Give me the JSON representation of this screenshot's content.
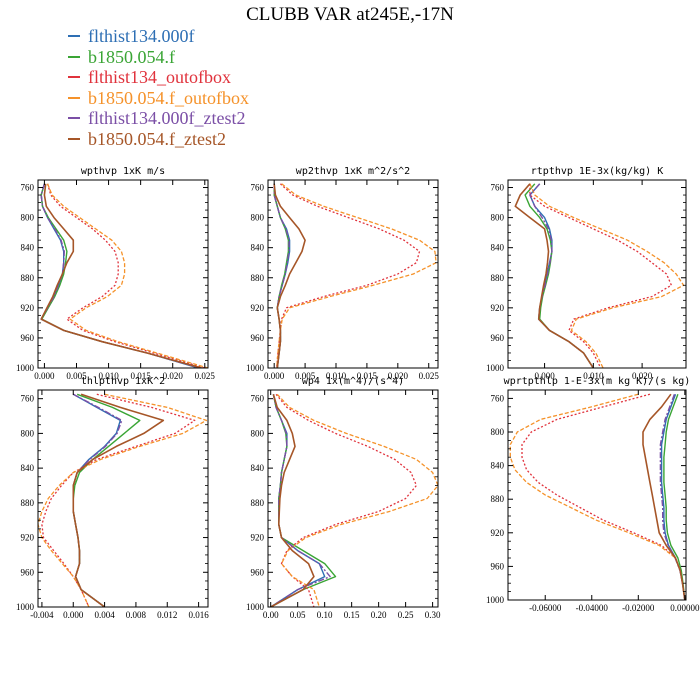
{
  "figure_title": "CLUBB VAR at245E,-17N",
  "legend": [
    {
      "label": "flthist134.000f",
      "color": "#2e6fb4"
    },
    {
      "label": "b1850.054.f",
      "color": "#3aa535"
    },
    {
      "label": "flthist134_outofbox",
      "color": "#e0323c"
    },
    {
      "label": "b1850.054.f_outofbox",
      "color": "#f5922a"
    },
    {
      "label": "flthist134.000f_ztest2",
      "color": "#7b4fa6"
    },
    {
      "label": "b1850.054.f_ztest2",
      "color": "#a65628"
    }
  ],
  "chart_data": [
    {
      "type": "line",
      "title": "wpthvp  1xK m/s",
      "ylim": [
        1000,
        750
      ],
      "yticks": [
        760,
        800,
        840,
        880,
        920,
        960,
        1000
      ],
      "xlim": [
        -0.001,
        0.0255
      ],
      "xticks": [
        0.0,
        0.005,
        0.01,
        0.015,
        0.02,
        0.025
      ],
      "xtick_labels": [
        "0.000",
        "0.005",
        "0.010",
        "0.015",
        "0.020",
        "0.025"
      ],
      "y": [
        755,
        770,
        785,
        800,
        815,
        830,
        845,
        860,
        875,
        890,
        905,
        920,
        935,
        950,
        965,
        980,
        1000
      ],
      "series": [
        {
          "values": [
            0.0,
            -0.0005,
            -0.0003,
            0.0005,
            0.0015,
            0.0025,
            0.003,
            0.003,
            0.0028,
            0.0022,
            0.0015,
            0.0005,
            -0.0005,
            0.003,
            0.009,
            0.016,
            0.024
          ]
        },
        {
          "values": [
            0.0,
            -0.0005,
            -0.0003,
            0.0006,
            0.0018,
            0.003,
            0.0035,
            0.0033,
            0.003,
            0.0024,
            0.0016,
            0.0006,
            -0.0004,
            0.003,
            0.009,
            0.016,
            0.0245
          ]
        },
        {
          "values": [
            0.0005,
            0.001,
            0.0025,
            0.005,
            0.0075,
            0.0095,
            0.011,
            0.0115,
            0.0115,
            0.011,
            0.009,
            0.006,
            0.0035,
            0.006,
            0.011,
            0.017,
            0.025
          ]
        },
        {
          "values": [
            0.0005,
            0.0012,
            0.003,
            0.0055,
            0.008,
            0.0105,
            0.012,
            0.0125,
            0.0125,
            0.012,
            0.0098,
            0.0065,
            0.004,
            0.0065,
            0.0115,
            0.0175,
            0.0255
          ]
        },
        {
          "values": [
            0.0,
            -0.0005,
            -0.0003,
            0.0005,
            0.0016,
            0.0026,
            0.0031,
            0.003,
            0.0028,
            0.0022,
            0.0015,
            0.0005,
            -0.0005,
            0.003,
            0.009,
            0.016,
            0.0242
          ]
        },
        {
          "values": [
            0.0002,
            0.0,
            0.0003,
            0.0015,
            0.003,
            0.0045,
            0.0045,
            0.0035,
            0.0028,
            0.002,
            0.0013,
            0.0004,
            -0.0005,
            0.003,
            0.009,
            0.016,
            0.0245
          ]
        }
      ]
    },
    {
      "type": "line",
      "title": "wp2thvp  1xK m^2/s^2",
      "ylim": [
        1000,
        750
      ],
      "yticks": [
        760,
        800,
        840,
        880,
        920,
        960,
        1000
      ],
      "xlim": [
        -0.001,
        0.0265
      ],
      "xticks": [
        0.0,
        0.005,
        0.01,
        0.015,
        0.02,
        0.025
      ],
      "xtick_labels": [
        "0.000",
        "0.005",
        "0.010",
        "0.015",
        "0.020",
        "0.025"
      ],
      "y": [
        755,
        770,
        785,
        800,
        815,
        830,
        845,
        860,
        875,
        890,
        905,
        920,
        935,
        950,
        965,
        980,
        1000
      ],
      "series": [
        {
          "values": [
            0.0,
            0.0,
            0.0005,
            0.001,
            0.002,
            0.0025,
            0.0025,
            0.0022,
            0.0018,
            0.0013,
            0.0008,
            0.0005,
            0.0008,
            0.001,
            0.001,
            0.0008,
            0.0005
          ]
        },
        {
          "values": [
            0.0,
            0.0,
            0.0005,
            0.001,
            0.0018,
            0.0023,
            0.0023,
            0.002,
            0.0017,
            0.0012,
            0.0008,
            0.0005,
            0.0008,
            0.001,
            0.001,
            0.0008,
            0.0005
          ]
        },
        {
          "values": [
            0.001,
            0.003,
            0.007,
            0.012,
            0.017,
            0.021,
            0.0235,
            0.023,
            0.02,
            0.015,
            0.008,
            0.002,
            0.0012,
            0.001,
            0.0008,
            0.0006,
            0.0004
          ]
        },
        {
          "values": [
            0.0012,
            0.0035,
            0.008,
            0.0135,
            0.019,
            0.0235,
            0.026,
            0.0262,
            0.0225,
            0.016,
            0.009,
            0.0025,
            0.0013,
            0.001,
            0.0008,
            0.0006,
            0.0004
          ]
        },
        {
          "values": [
            0.0,
            0.0,
            0.0005,
            0.001,
            0.0019,
            0.0024,
            0.0024,
            0.0021,
            0.0018,
            0.0013,
            0.0008,
            0.0005,
            0.0008,
            0.001,
            0.001,
            0.0008,
            0.0005
          ]
        },
        {
          "values": [
            0.0,
            0.0002,
            0.001,
            0.0025,
            0.004,
            0.005,
            0.0045,
            0.0035,
            0.0025,
            0.0018,
            0.001,
            0.0005,
            0.0008,
            0.001,
            0.001,
            0.0008,
            0.0005
          ]
        }
      ]
    },
    {
      "type": "line",
      "title": "rtpthvp  1E-3x(kg/kg) K",
      "ylim": [
        1000,
        750
      ],
      "yticks": [
        760,
        800,
        840,
        880,
        920,
        960,
        1000
      ],
      "xlim": [
        -0.0075,
        0.029
      ],
      "xticks": [
        0.0,
        0.01,
        0.02
      ],
      "xtick_labels": [
        "0.000",
        "0.010",
        "0.020"
      ],
      "y": [
        755,
        770,
        785,
        800,
        815,
        830,
        845,
        860,
        875,
        890,
        905,
        920,
        935,
        950,
        965,
        980,
        1000
      ],
      "series": [
        {
          "values": [
            -0.001,
            -0.003,
            -0.002,
            0.0,
            0.001,
            0.0015,
            0.0015,
            0.001,
            0.0005,
            0.0,
            -0.0005,
            -0.001,
            -0.0012,
            0.001,
            0.005,
            0.008,
            0.01
          ]
        },
        {
          "values": [
            -0.002,
            -0.004,
            -0.003,
            -0.001,
            0.0005,
            0.0012,
            0.0015,
            0.0012,
            0.0008,
            0.0002,
            -0.0004,
            -0.0008,
            -0.001,
            0.001,
            0.005,
            0.008,
            0.01
          ]
        },
        {
          "values": [
            -0.003,
            -0.003,
            0.0,
            0.005,
            0.01,
            0.015,
            0.019,
            0.022,
            0.025,
            0.026,
            0.022,
            0.013,
            0.006,
            0.005,
            0.008,
            0.01,
            0.0115
          ]
        },
        {
          "values": [
            -0.003,
            -0.002,
            0.001,
            0.006,
            0.0115,
            0.017,
            0.021,
            0.0245,
            0.027,
            0.0285,
            0.024,
            0.014,
            0.0065,
            0.0055,
            0.0085,
            0.0105,
            0.012
          ]
        },
        {
          "values": [
            -0.001,
            -0.003,
            -0.002,
            -0.0005,
            0.0008,
            0.0014,
            0.0015,
            0.0011,
            0.0006,
            0.0001,
            -0.0005,
            -0.001,
            -0.0012,
            0.001,
            0.005,
            0.008,
            0.01
          ]
        },
        {
          "values": [
            -0.003,
            -0.005,
            -0.006,
            -0.003,
            0.0,
            0.0005,
            0.0008,
            0.0006,
            0.0003,
            -0.0002,
            -0.0006,
            -0.001,
            -0.0012,
            0.001,
            0.005,
            0.008,
            0.01
          ]
        }
      ]
    },
    {
      "type": "line",
      "title": "thlpthvp  1xK^2",
      "ylim": [
        1000,
        750
      ],
      "yticks": [
        760,
        800,
        840,
        880,
        920,
        960,
        1000
      ],
      "xlim": [
        -0.0045,
        0.0172
      ],
      "xticks": [
        -0.004,
        0.0,
        0.004,
        0.008,
        0.012,
        0.016
      ],
      "xtick_labels": [
        "-0.004",
        "0.000",
        "0.004",
        "0.008",
        "0.012",
        "0.016"
      ],
      "y": [
        755,
        770,
        785,
        800,
        815,
        830,
        845,
        860,
        875,
        890,
        905,
        920,
        935,
        950,
        965,
        980,
        1000
      ],
      "series": [
        {
          "values": [
            0.0,
            0.003,
            0.006,
            0.0055,
            0.004,
            0.002,
            0.0005,
            0.0,
            0.0,
            0.0,
            0.0003,
            0.0006,
            0.0008,
            0.0008,
            0.0003,
            0.001,
            0.004
          ]
        },
        {
          "values": [
            0.0005,
            0.005,
            0.0085,
            0.0065,
            0.0045,
            0.0025,
            0.0008,
            0.0002,
            0.0,
            0.0,
            0.0003,
            0.0006,
            0.0008,
            0.0008,
            0.0003,
            0.001,
            0.004
          ]
        },
        {
          "values": [
            0.003,
            0.01,
            0.0155,
            0.013,
            0.008,
            0.003,
            0.0,
            -0.0015,
            -0.0028,
            -0.0035,
            -0.004,
            -0.0038,
            -0.0025,
            -0.0012,
            0.0,
            0.001,
            0.002
          ]
        },
        {
          "values": [
            0.004,
            0.012,
            0.017,
            0.014,
            0.0085,
            0.0035,
            0.0,
            -0.0018,
            -0.0032,
            -0.004,
            -0.0045,
            -0.004,
            -0.0028,
            -0.0014,
            0.0,
            0.001,
            0.002
          ]
        },
        {
          "values": [
            0.0,
            0.0032,
            0.0062,
            0.0056,
            0.0041,
            0.0021,
            0.0005,
            0.0,
            0.0,
            0.0,
            0.0003,
            0.0006,
            0.0008,
            0.0008,
            0.0003,
            0.001,
            0.004
          ]
        },
        {
          "values": [
            0.001,
            0.006,
            0.0115,
            0.009,
            0.0055,
            0.0025,
            0.0005,
            0.0,
            0.0,
            0.0,
            0.0003,
            0.0006,
            0.0008,
            0.0008,
            0.0003,
            0.001,
            0.004
          ]
        }
      ]
    },
    {
      "type": "line",
      "title": "wp4  1x(m^4)/(s^4)",
      "ylim": [
        1000,
        750
      ],
      "yticks": [
        760,
        800,
        840,
        880,
        920,
        960,
        1000
      ],
      "xlim": [
        -0.005,
        0.31
      ],
      "xticks": [
        0.0,
        0.05,
        0.1,
        0.15,
        0.2,
        0.25,
        0.3
      ],
      "xtick_labels": [
        "0.00",
        "0.05",
        "0.10",
        "0.15",
        "0.20",
        "0.25",
        "0.30"
      ],
      "y": [
        755,
        770,
        785,
        800,
        815,
        830,
        845,
        860,
        875,
        890,
        905,
        920,
        935,
        950,
        965,
        980,
        1000
      ],
      "series": [
        {
          "values": [
            0.005,
            0.01,
            0.02,
            0.03,
            0.03,
            0.025,
            0.02,
            0.018,
            0.015,
            0.015,
            0.015,
            0.02,
            0.05,
            0.09,
            0.1,
            0.05,
            0.0
          ]
        },
        {
          "values": [
            0.005,
            0.01,
            0.02,
            0.028,
            0.03,
            0.025,
            0.02,
            0.018,
            0.015,
            0.015,
            0.015,
            0.02,
            0.06,
            0.1,
            0.12,
            0.06,
            0.0
          ]
        },
        {
          "values": [
            0.01,
            0.03,
            0.07,
            0.12,
            0.18,
            0.23,
            0.26,
            0.27,
            0.25,
            0.2,
            0.12,
            0.06,
            0.03,
            0.02,
            0.04,
            0.07,
            0.08
          ]
        },
        {
          "values": [
            0.012,
            0.035,
            0.08,
            0.14,
            0.21,
            0.27,
            0.3,
            0.31,
            0.29,
            0.22,
            0.13,
            0.065,
            0.032,
            0.02,
            0.04,
            0.08,
            0.09
          ]
        },
        {
          "values": [
            0.005,
            0.01,
            0.02,
            0.029,
            0.03,
            0.025,
            0.02,
            0.018,
            0.015,
            0.015,
            0.015,
            0.02,
            0.05,
            0.09,
            0.11,
            0.05,
            0.0
          ]
        },
        {
          "values": [
            0.005,
            0.012,
            0.03,
            0.04,
            0.045,
            0.035,
            0.025,
            0.02,
            0.017,
            0.016,
            0.015,
            0.02,
            0.04,
            0.07,
            0.08,
            0.06,
            0.0
          ]
        }
      ]
    },
    {
      "type": "line",
      "title": "wprtpthlp  1-E-3x(m kg K)/(s kg)",
      "ylim": [
        1000,
        750
      ],
      "yticks": [
        760,
        800,
        840,
        880,
        920,
        960,
        1000
      ],
      "xlim": [
        -0.076,
        0.0005
      ],
      "xticks": [
        -0.06,
        -0.04,
        -0.02,
        0.0
      ],
      "xtick_labels": [
        "-0.06000",
        "-0.04000",
        "-0.02000",
        "0.00000"
      ],
      "y": [
        755,
        770,
        785,
        800,
        815,
        830,
        845,
        860,
        875,
        890,
        905,
        920,
        935,
        950,
        965,
        980,
        1000
      ],
      "series": [
        {
          "values": [
            -0.004,
            -0.006,
            -0.008,
            -0.009,
            -0.01,
            -0.01,
            -0.01,
            -0.01,
            -0.0095,
            -0.009,
            -0.009,
            -0.0085,
            -0.007,
            -0.004,
            -0.002,
            -0.001,
            0.0
          ]
        },
        {
          "values": [
            -0.003,
            -0.005,
            -0.007,
            -0.008,
            -0.0085,
            -0.009,
            -0.009,
            -0.009,
            -0.0085,
            -0.008,
            -0.008,
            -0.0075,
            -0.006,
            -0.003,
            -0.0015,
            -0.0008,
            0.0
          ]
        },
        {
          "values": [
            -0.015,
            -0.035,
            -0.055,
            -0.066,
            -0.07,
            -0.07,
            -0.068,
            -0.063,
            -0.055,
            -0.045,
            -0.035,
            -0.022,
            -0.01,
            -0.004,
            -0.002,
            -0.001,
            0.0
          ]
        },
        {
          "values": [
            -0.02,
            -0.04,
            -0.062,
            -0.072,
            -0.075,
            -0.075,
            -0.073,
            -0.068,
            -0.06,
            -0.049,
            -0.038,
            -0.024,
            -0.011,
            -0.004,
            -0.002,
            -0.001,
            0.0
          ]
        },
        {
          "values": [
            -0.0045,
            -0.0065,
            -0.0085,
            -0.0095,
            -0.0105,
            -0.0105,
            -0.0105,
            -0.0105,
            -0.01,
            -0.0095,
            -0.0095,
            -0.009,
            -0.0072,
            -0.0042,
            -0.0021,
            -0.001,
            0.0
          ]
        },
        {
          "values": [
            -0.006,
            -0.01,
            -0.015,
            -0.018,
            -0.018,
            -0.017,
            -0.016,
            -0.015,
            -0.014,
            -0.013,
            -0.012,
            -0.011,
            -0.008,
            -0.004,
            -0.002,
            -0.001,
            0.0
          ]
        }
      ]
    }
  ]
}
